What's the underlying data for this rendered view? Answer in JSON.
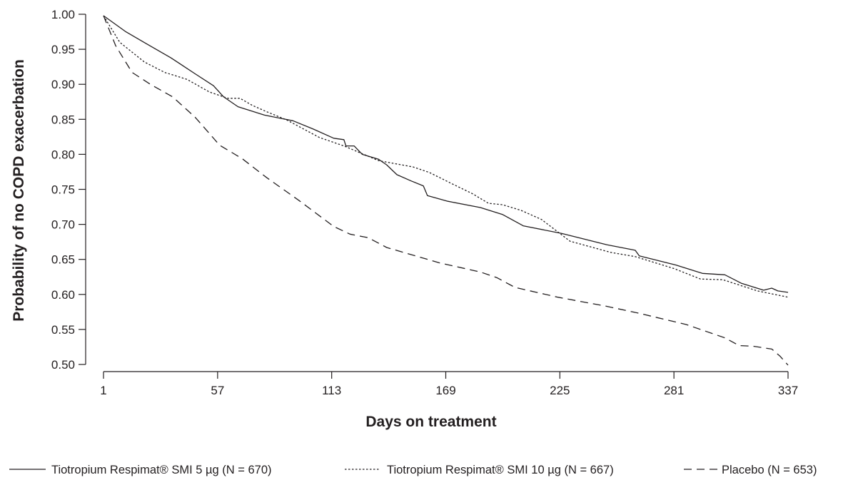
{
  "chart_data": {
    "type": "line",
    "title": "",
    "xlabel": "Days on treatment",
    "ylabel": "Probability of no COPD exacerbation",
    "xlim": [
      1,
      337
    ],
    "ylim": [
      0.5,
      1.0
    ],
    "x_ticks": [
      1,
      57,
      113,
      169,
      225,
      281,
      337
    ],
    "x_tick_labels": [
      "1",
      "57",
      "113",
      "169",
      "225",
      "281",
      "337"
    ],
    "y_ticks": [
      0.5,
      0.55,
      0.6,
      0.65,
      0.7,
      0.75,
      0.8,
      0.85,
      0.9,
      0.95,
      1.0
    ],
    "y_tick_labels": [
      "0.50",
      "0.55",
      "0.60",
      "0.65",
      "0.70",
      "0.75",
      "0.80",
      "0.85",
      "0.90",
      "0.95",
      "1.00"
    ],
    "grid": false,
    "legend_position": "bottom",
    "series": [
      {
        "name": "Tiotropium Respimat® SMI 5 µg (N = 670)",
        "line_style": "solid",
        "color": "#231f20",
        "points": [
          [
            1,
            0.998
          ],
          [
            12,
            0.975
          ],
          [
            22,
            0.958
          ],
          [
            34,
            0.938
          ],
          [
            46,
            0.915
          ],
          [
            55,
            0.898
          ],
          [
            60,
            0.882
          ],
          [
            67,
            0.868
          ],
          [
            80,
            0.856
          ],
          [
            94,
            0.848
          ],
          [
            104,
            0.836
          ],
          [
            114,
            0.823
          ],
          [
            119,
            0.821
          ],
          [
            120,
            0.812
          ],
          [
            124,
            0.812
          ],
          [
            128,
            0.8
          ],
          [
            136,
            0.793
          ],
          [
            140,
            0.785
          ],
          [
            145,
            0.771
          ],
          [
            152,
            0.762
          ],
          [
            158,
            0.755
          ],
          [
            160,
            0.741
          ],
          [
            170,
            0.733
          ],
          [
            186,
            0.724
          ],
          [
            197,
            0.714
          ],
          [
            207,
            0.698
          ],
          [
            226,
            0.687
          ],
          [
            248,
            0.671
          ],
          [
            262,
            0.663
          ],
          [
            264,
            0.655
          ],
          [
            282,
            0.642
          ],
          [
            295,
            0.63
          ],
          [
            306,
            0.628
          ],
          [
            314,
            0.616
          ],
          [
            325,
            0.606
          ],
          [
            329,
            0.609
          ],
          [
            332,
            0.605
          ],
          [
            337,
            0.603
          ]
        ]
      },
      {
        "name": "Tiotropium Respimat® SMI 10 µg (N = 667)",
        "line_style": "dotted",
        "color": "#231f20",
        "points": [
          [
            1,
            0.998
          ],
          [
            9,
            0.96
          ],
          [
            21,
            0.932
          ],
          [
            31,
            0.917
          ],
          [
            42,
            0.907
          ],
          [
            53,
            0.889
          ],
          [
            62,
            0.88
          ],
          [
            68,
            0.88
          ],
          [
            74,
            0.87
          ],
          [
            81,
            0.861
          ],
          [
            91,
            0.849
          ],
          [
            107,
            0.824
          ],
          [
            119,
            0.812
          ],
          [
            136,
            0.791
          ],
          [
            153,
            0.782
          ],
          [
            161,
            0.774
          ],
          [
            172,
            0.758
          ],
          [
            182,
            0.744
          ],
          [
            190,
            0.73
          ],
          [
            197,
            0.728
          ],
          [
            206,
            0.72
          ],
          [
            216,
            0.707
          ],
          [
            230,
            0.676
          ],
          [
            250,
            0.66
          ],
          [
            262,
            0.654
          ],
          [
            281,
            0.637
          ],
          [
            294,
            0.622
          ],
          [
            305,
            0.621
          ],
          [
            322,
            0.605
          ],
          [
            337,
            0.596
          ]
        ]
      },
      {
        "name": "Placebo (N = 653)",
        "line_style": "dashed",
        "color": "#231f20",
        "points": [
          [
            1,
            0.998
          ],
          [
            7,
            0.955
          ],
          [
            15,
            0.917
          ],
          [
            24,
            0.9
          ],
          [
            35,
            0.882
          ],
          [
            46,
            0.853
          ],
          [
            58,
            0.813
          ],
          [
            69,
            0.794
          ],
          [
            81,
            0.767
          ],
          [
            97,
            0.734
          ],
          [
            114,
            0.697
          ],
          [
            122,
            0.686
          ],
          [
            131,
            0.681
          ],
          [
            140,
            0.667
          ],
          [
            166,
            0.645
          ],
          [
            186,
            0.632
          ],
          [
            194,
            0.624
          ],
          [
            203,
            0.61
          ],
          [
            224,
            0.596
          ],
          [
            248,
            0.583
          ],
          [
            264,
            0.573
          ],
          [
            287,
            0.557
          ],
          [
            306,
            0.538
          ],
          [
            313,
            0.527
          ],
          [
            320,
            0.526
          ],
          [
            329,
            0.522
          ],
          [
            333,
            0.512
          ],
          [
            337,
            0.499
          ]
        ]
      }
    ]
  }
}
